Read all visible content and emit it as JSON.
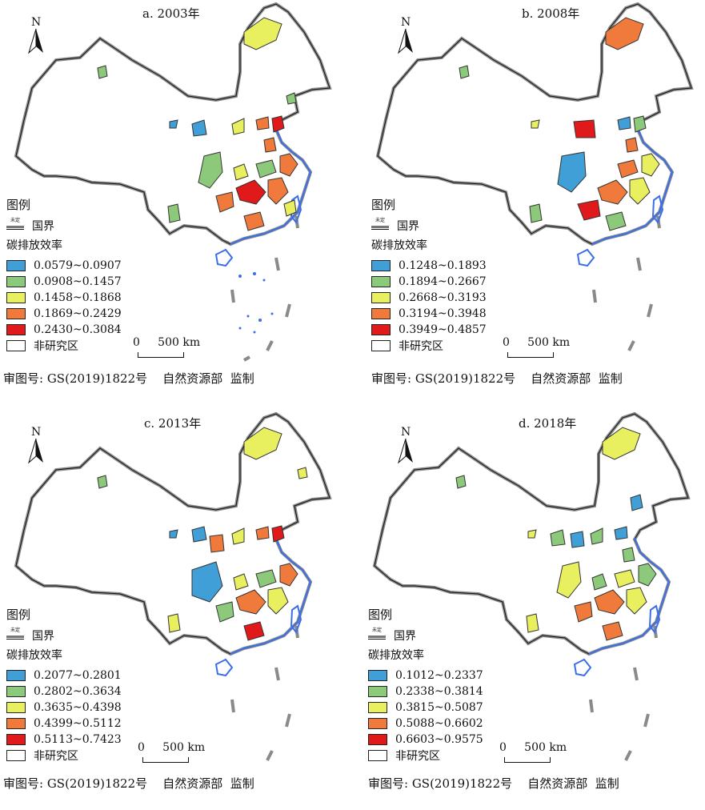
{
  "panels": [
    {
      "title": "a. 2003年",
      "legend_ranges": [
        "0.0579~0.0907",
        "0.0908~0.1457",
        "0.1458~0.1868",
        "0.1869~0.2429",
        "0.2430~0.3084"
      ]
    },
    {
      "title": "b. 2008年",
      "legend_ranges": [
        "0.1248~0.1893",
        "0.1894~0.2667",
        "0.2668~0.3193",
        "0.3194~0.3948",
        "0.3949~0.4857"
      ]
    },
    {
      "title": "c. 2013年",
      "legend_ranges": [
        "0.2077~0.2801",
        "0.2802~0.3634",
        "0.3635~0.4398",
        "0.4399~0.5112",
        "0.5113~0.7423"
      ]
    },
    {
      "title": "d. 2018年",
      "legend_ranges": [
        "0.1012~0.2337",
        "0.2338~0.3814",
        "0.3815~0.5087",
        "0.5088~0.6602",
        "0.6603~0.9575"
      ]
    }
  ],
  "legend": {
    "heading": "图例",
    "border_label": "国界",
    "border_symbol_text": "未定",
    "subheading": "碳排放效率",
    "non_study": "非研究区"
  },
  "north_label": "N",
  "scale_label": "0     500 km",
  "credit": "审图号: GS(2019)1822号    自然资源部  监制",
  "class_colors": [
    "#3f9fd6",
    "#8cc97a",
    "#e8f060",
    "#f07a3c",
    "#e01a1a"
  ],
  "outline_color": "#7a7a7a",
  "water_color": "#3b6fe8"
}
